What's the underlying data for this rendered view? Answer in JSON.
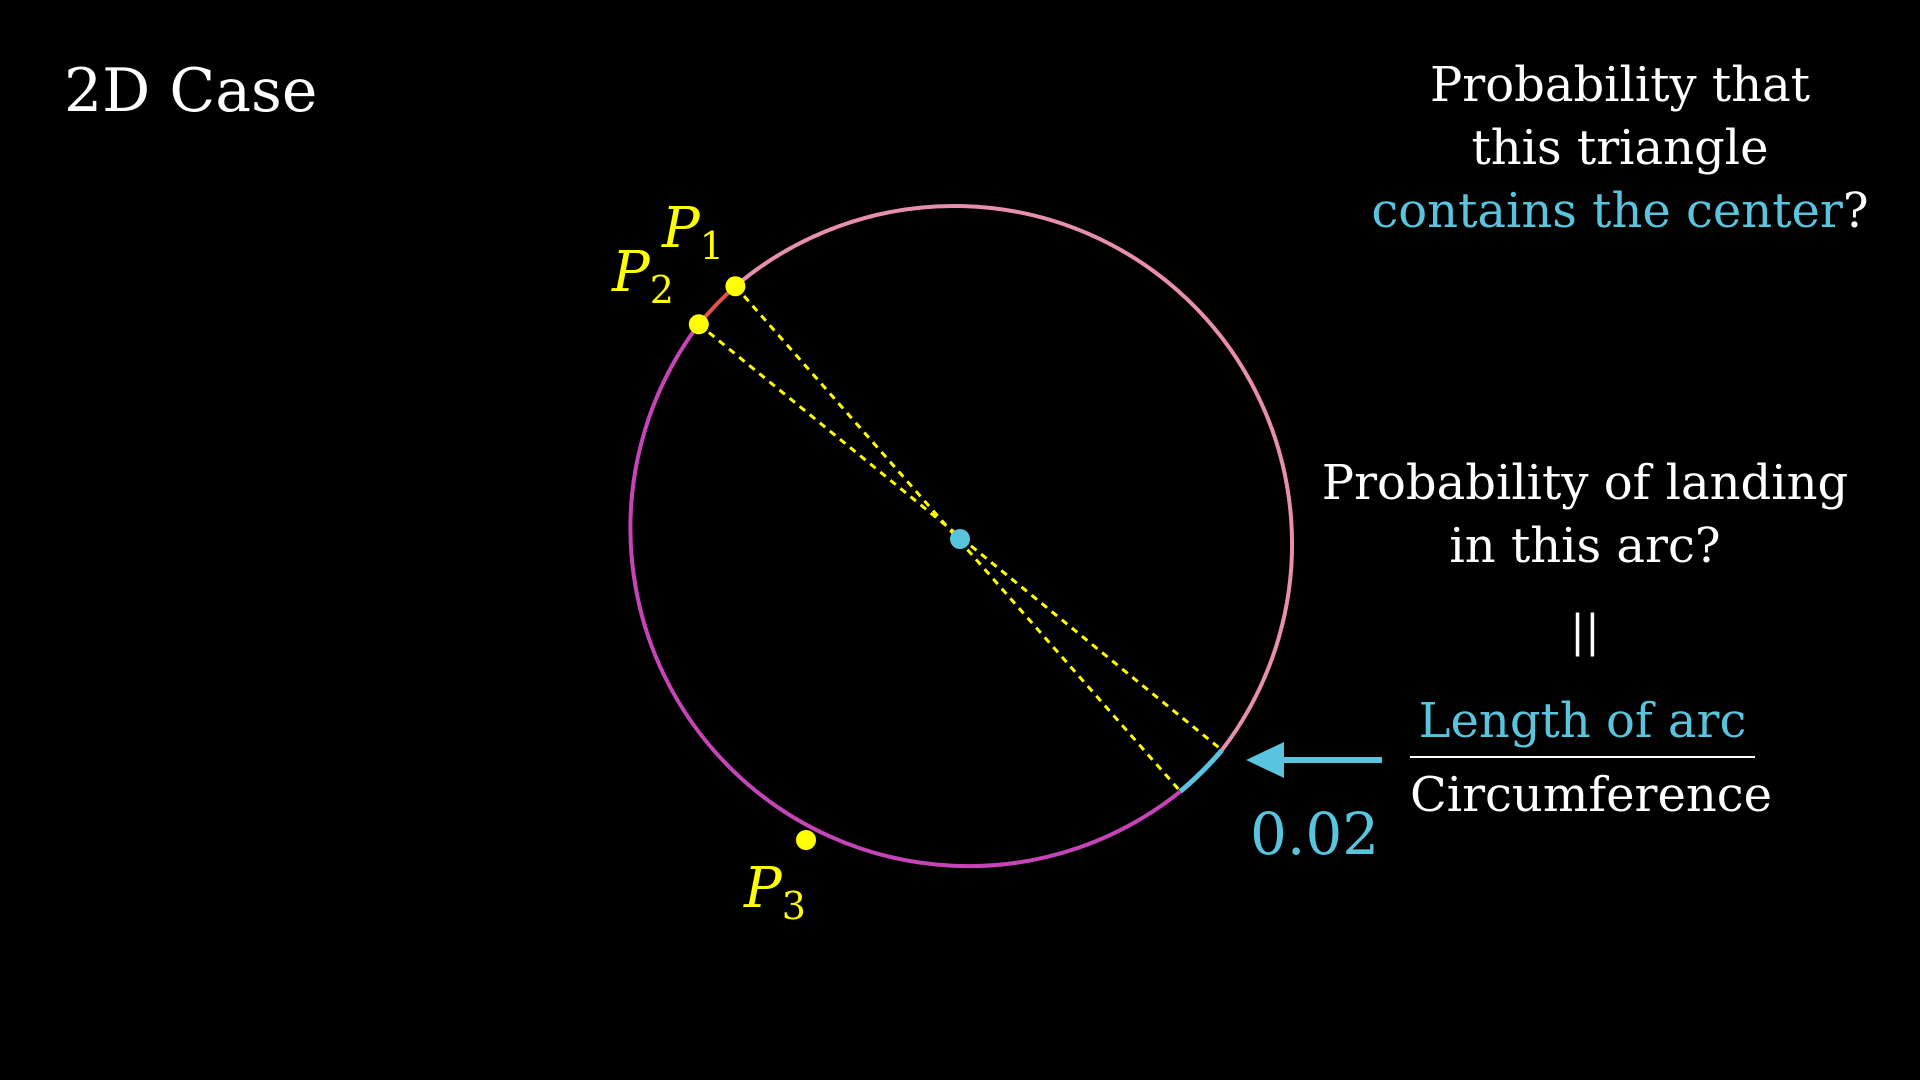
{
  "title": "2D Case",
  "question": {
    "line1": "Probability that",
    "line2": "this triangle",
    "line3_accent": "contains the center",
    "line3_end": "?"
  },
  "arc_question": {
    "line1": "Probability of landing",
    "line2": "in this arc?"
  },
  "equals": "||",
  "fraction": {
    "numerator": "Length of arc",
    "denominator": "Circumference"
  },
  "value": "0.02",
  "points": [
    {
      "letter": "P",
      "sub": "1"
    },
    {
      "letter": "P",
      "sub": "2"
    },
    {
      "letter": "P",
      "sub": "3"
    }
  ],
  "colors": {
    "background": "#000000",
    "text": "#ffffff",
    "accent_blue": "#58c4dd",
    "points_yellow": "#ffff00",
    "arc_pink": "#e88fb0",
    "arc_magenta": "#c744b8",
    "arc_red": "#e0524a"
  }
}
